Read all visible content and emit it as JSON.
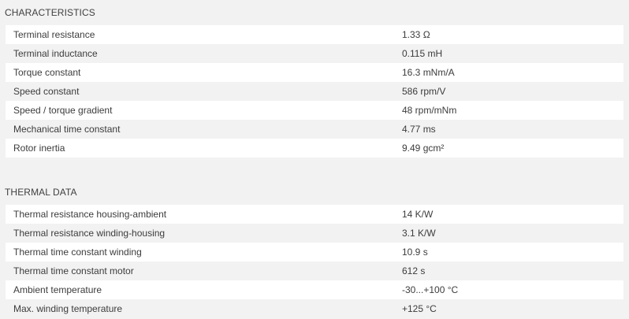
{
  "characteristics": {
    "title": "CHARACTERISTICS",
    "rows": [
      {
        "label": "Terminal resistance",
        "value": "1.33 Ω"
      },
      {
        "label": "Terminal inductance",
        "value": "0.115 mH"
      },
      {
        "label": "Torque constant",
        "value": "16.3 mNm/A"
      },
      {
        "label": "Speed constant",
        "value": "586 rpm/V"
      },
      {
        "label": "Speed / torque gradient",
        "value": "48 rpm/mNm"
      },
      {
        "label": "Mechanical time constant",
        "value": "4.77 ms"
      },
      {
        "label": "Rotor inertia",
        "value": "9.49 gcm²"
      }
    ]
  },
  "thermal": {
    "title": "THERMAL DATA",
    "rows": [
      {
        "label": "Thermal resistance housing-ambient",
        "value": "14 K/W"
      },
      {
        "label": "Thermal resistance winding-housing",
        "value": "3.1 K/W"
      },
      {
        "label": "Thermal time constant winding",
        "value": "10.9 s"
      },
      {
        "label": "Thermal time constant motor",
        "value": "612 s"
      },
      {
        "label": "Ambient temperature",
        "value": "-30...+100 °C"
      },
      {
        "label": "Max. winding temperature",
        "value": "+125 °C"
      }
    ]
  }
}
